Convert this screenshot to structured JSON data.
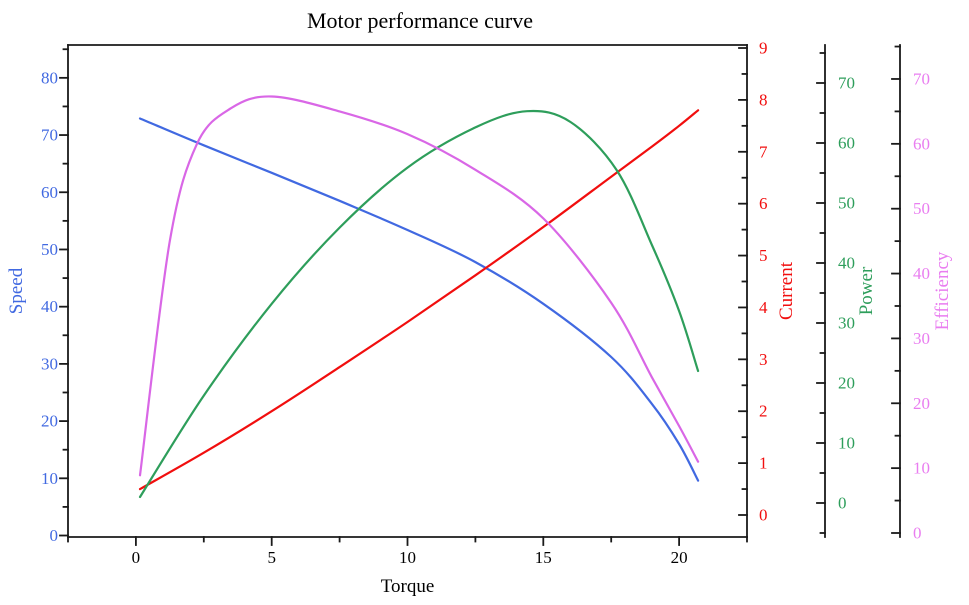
{
  "title": "Motor performance curve",
  "chart_data": {
    "type": "line",
    "title": "Motor performance curve",
    "grid": false,
    "legend": "none",
    "x_axis": {
      "label": "Torque",
      "range": [
        -2.5,
        22.5
      ],
      "major_ticks": [
        0,
        5,
        10,
        15,
        20
      ],
      "minor_step": 2.5,
      "color": "#000000"
    },
    "y_axes": [
      {
        "id": "speed",
        "label": "Speed",
        "side": "left",
        "color": "#4169e1",
        "major_ticks": [
          0,
          10,
          20,
          30,
          40,
          50,
          60,
          70,
          80
        ],
        "minor_step": 5,
        "range": [
          -0.26,
          85.74
        ]
      },
      {
        "id": "current",
        "label": "Current",
        "side": "right",
        "color": "#f10e0e",
        "major_ticks": [
          0,
          1,
          2,
          3,
          4,
          5,
          6,
          7,
          8,
          9
        ],
        "minor_step": 0.5,
        "range": [
          -0.424,
          9.058
        ]
      },
      {
        "id": "power",
        "label": "Power",
        "side": "right",
        "color": "#2e9e5b",
        "major_ticks": [
          0,
          10,
          20,
          30,
          40,
          50,
          60,
          70
        ],
        "minor_step": 5,
        "range": [
          -5.667,
          76.333
        ]
      },
      {
        "id": "efficiency",
        "label": "Efficiency",
        "side": "right",
        "color": "#e97df0",
        "major_ticks": [
          0,
          10,
          20,
          30,
          40,
          50,
          60,
          70
        ],
        "minor_step": 5,
        "range": [
          -0.617,
          75.238
        ]
      }
    ],
    "series": [
      {
        "name": "Speed",
        "y_axis": "speed",
        "color": "#4169e1",
        "x": [
          0.15,
          2.5,
          5,
          7.5,
          10,
          12.5,
          15,
          17.5,
          19,
          20,
          20.7
        ],
        "y": [
          72.9,
          68.2,
          63.4,
          58.5,
          53.4,
          47.8,
          40.5,
          31.2,
          23.0,
          16.0,
          9.6
        ]
      },
      {
        "name": "Current",
        "y_axis": "current",
        "color": "#f10e0e",
        "x": [
          0.15,
          2.5,
          5,
          7.5,
          10,
          12.5,
          15,
          17.5,
          19,
          20,
          20.7
        ],
        "y": [
          0.5,
          1.2,
          2.0,
          2.85,
          3.72,
          4.62,
          5.55,
          6.52,
          7.1,
          7.5,
          7.8
        ]
      },
      {
        "name": "Power",
        "y_axis": "power",
        "color": "#2e9e5b",
        "x": [
          0.15,
          2.5,
          5,
          7.5,
          10,
          12.5,
          14.4,
          16,
          17.7,
          19,
          20,
          20.7
        ],
        "y": [
          1.0,
          17.9,
          33.2,
          45.9,
          55.9,
          62.6,
          65.3,
          63.5,
          55.5,
          43.0,
          32.0,
          22.0
        ]
      },
      {
        "name": "Efficiency",
        "y_axis": "efficiency",
        "color": "#d967e6",
        "x": [
          0.15,
          1.25,
          2.25,
          3.5,
          5,
          7.5,
          10,
          12.5,
          15,
          17.5,
          19,
          20,
          20.7
        ],
        "y": [
          8.9,
          45.0,
          60.0,
          65.5,
          67.3,
          65.0,
          61.5,
          56.0,
          48.5,
          35.5,
          24.0,
          16.5,
          11.0
        ]
      }
    ]
  }
}
